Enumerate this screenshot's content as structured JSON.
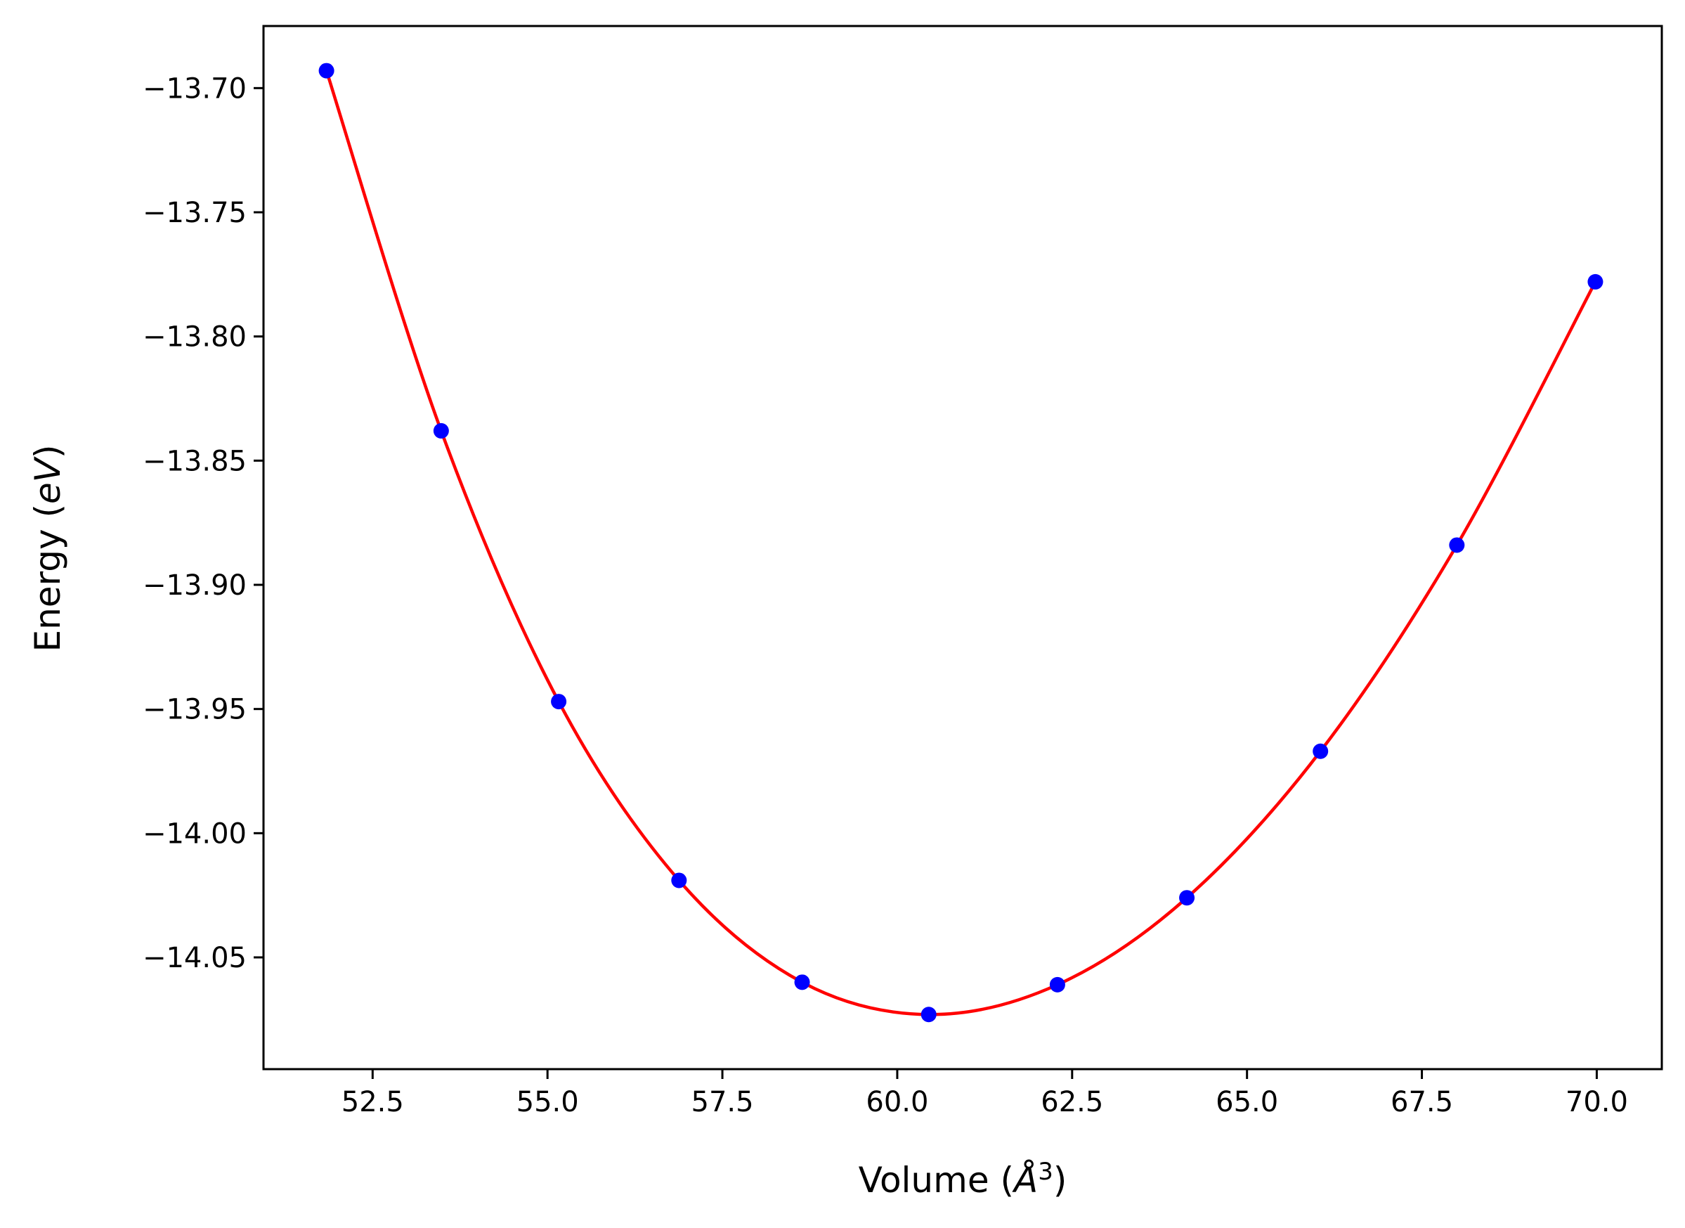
{
  "chart_data": {
    "type": "scatter",
    "title": "",
    "xlabel": {
      "main": "Volume (",
      "symbol": "Å",
      "superscript": "3",
      "close": ")"
    },
    "ylabel": {
      "main": "Energy (",
      "italic": "eV",
      "close": ")"
    },
    "xlim": [
      50.94,
      70.93
    ],
    "ylim": [
      -14.095,
      -13.675
    ],
    "xticks": [
      52.5,
      55.0,
      57.5,
      60.0,
      62.5,
      65.0,
      67.5,
      70.0
    ],
    "xtick_labels": [
      "52.5",
      "55.0",
      "57.5",
      "60.0",
      "62.5",
      "65.0",
      "67.5",
      "70.0"
    ],
    "yticks": [
      -13.7,
      -13.75,
      -13.8,
      -13.85,
      -13.9,
      -13.95,
      -14.0,
      -14.05
    ],
    "ytick_labels": [
      "−13.70",
      "−13.75",
      "−13.80",
      "−13.85",
      "−13.90",
      "−13.95",
      "−14.00",
      "−14.05"
    ],
    "grid": false,
    "series": [
      {
        "kind": "points",
        "color": "#0000ff",
        "x": [
          51.84,
          53.48,
          55.16,
          56.88,
          58.64,
          60.45,
          62.29,
          64.14,
          66.05,
          68.0,
          69.98
        ],
        "y": [
          -13.693,
          -13.838,
          -13.947,
          -14.019,
          -14.06,
          -14.073,
          -14.061,
          -14.026,
          -13.967,
          -13.884,
          -13.778
        ]
      },
      {
        "kind": "fit-curve",
        "color": "#ff0000",
        "x": [
          51.84,
          53.48,
          55.16,
          56.88,
          58.64,
          60.45,
          62.29,
          64.14,
          66.05,
          68.0,
          69.98
        ],
        "y": [
          -13.693,
          -13.838,
          -13.947,
          -14.019,
          -14.06,
          -14.073,
          -14.061,
          -14.026,
          -13.967,
          -13.884,
          -13.778
        ]
      }
    ]
  }
}
